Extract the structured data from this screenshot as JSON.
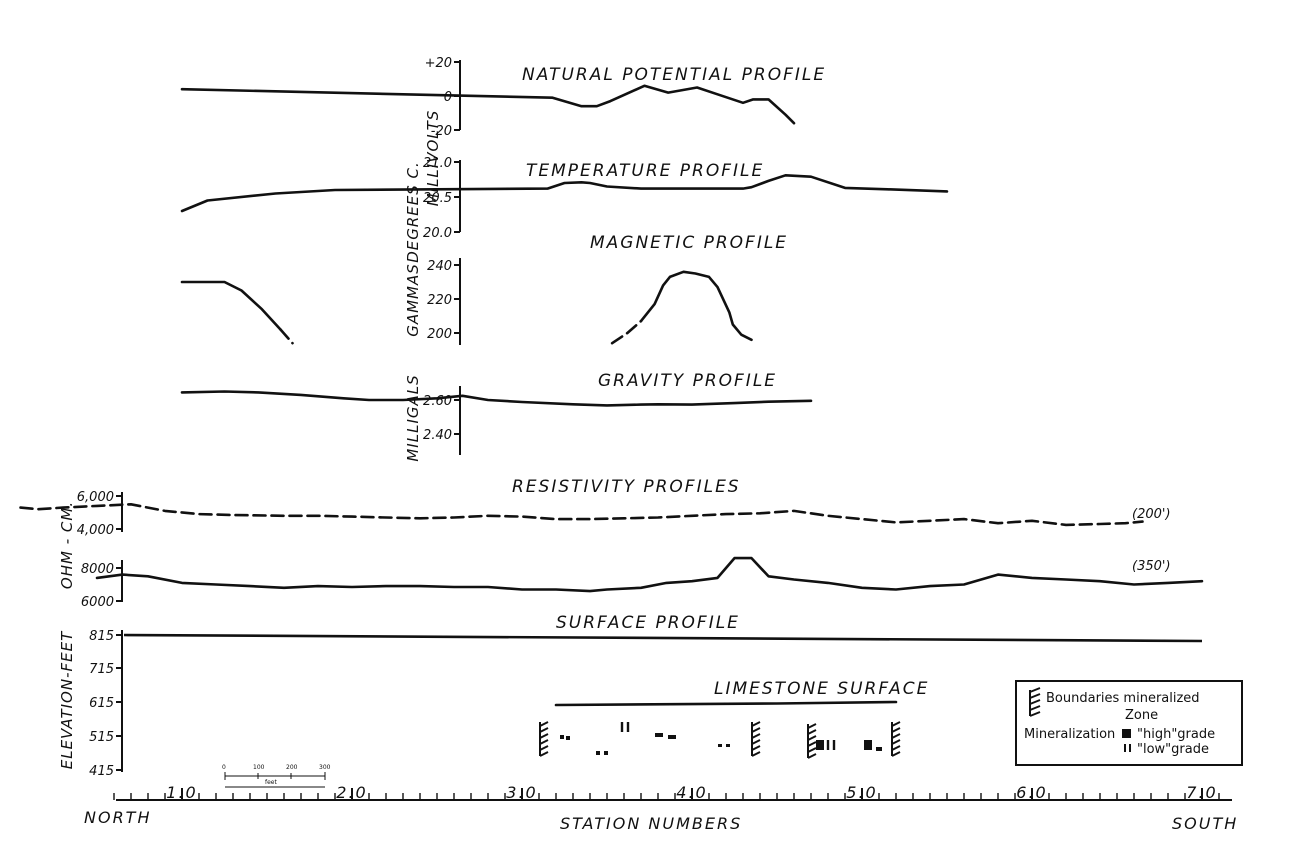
{
  "chart_data": [
    {
      "type": "line",
      "title": "NATURAL POTENTIAL PROFILE",
      "ylabel": "MILLIVOLTS",
      "ylim": [
        -20,
        20
      ],
      "yticks": [
        "+20",
        "0",
        "-20"
      ],
      "series": [
        {
          "x": [
            10,
            31.8,
            33.5,
            34.4,
            35.2,
            37.2,
            38.6,
            40.3,
            41.5,
            43,
            43.6,
            44.5,
            45.5,
            46
          ],
          "y": [
            4,
            -1,
            -6,
            -6,
            -3,
            6,
            2,
            5,
            1,
            -4,
            -2,
            -2,
            -11,
            -16
          ]
        }
      ]
    },
    {
      "type": "line",
      "title": "TEMPERATURE PROFILE",
      "ylabel": "DEGREES C.",
      "ylim": [
        20.0,
        21.0
      ],
      "yticks": [
        "21.0",
        "20.5",
        "20.0"
      ],
      "series": [
        {
          "x": [
            10,
            11.5,
            15.5,
            19,
            31.5,
            32.5,
            33.5,
            34,
            35,
            37,
            40,
            43,
            43.5,
            44.5,
            45.5,
            47,
            49,
            51.5,
            55
          ],
          "y": [
            20.3,
            20.45,
            20.55,
            20.6,
            20.62,
            20.7,
            20.71,
            20.7,
            20.65,
            20.62,
            20.62,
            20.62,
            20.64,
            20.73,
            20.81,
            20.79,
            20.63,
            20.61,
            20.58
          ]
        }
      ]
    },
    {
      "type": "line",
      "title": "MAGNETIC PROFILE",
      "ylabel": "GAMMAS",
      "ylim": [
        195,
        245
      ],
      "yticks": [
        "240",
        "220",
        "200"
      ],
      "series": [
        {
          "x": [
            10,
            11.8,
            11.9,
            12.5,
            13.5,
            14.7,
            15.8,
            16.5
          ],
          "y": [
            230,
            230,
            230,
            230,
            225,
            214,
            202,
            194
          ]
        },
        {
          "x": [
            35.3,
            36.2,
            37,
            37.8,
            38.3,
            38.7,
            39.5,
            40.2,
            41,
            41.5,
            42.2,
            42.4,
            42.9,
            43.5
          ],
          "y": [
            194,
            200,
            207,
            217,
            228,
            233,
            236,
            235,
            233,
            227,
            212,
            205,
            199,
            196
          ]
        }
      ]
    },
    {
      "type": "line",
      "title": "GRAVITY PROFILE",
      "ylabel": "MILLIGALS",
      "ylim": [
        2.3,
        2.7
      ],
      "yticks": [
        "2.60",
        "2.40"
      ],
      "series": [
        {
          "x": [
            10,
            12.5,
            14.5,
            17,
            19.5,
            21,
            23,
            25,
            26.5,
            28,
            30,
            33,
            35,
            37,
            38,
            40,
            42.5,
            44.5,
            47
          ],
          "y": [
            2.645,
            2.65,
            2.645,
            2.63,
            2.61,
            2.6,
            2.6,
            2.61,
            2.625,
            2.6,
            2.588,
            2.575,
            2.568,
            2.573,
            2.575,
            2.573,
            2.582,
            2.59,
            2.595
          ]
        }
      ]
    },
    {
      "type": "line",
      "title": "RESISTIVITY PROFILES",
      "ylabel": "OHM - CM.",
      "yticks_top": [
        "6,000",
        "4,000"
      ],
      "yticks_bottom": [
        "8000",
        "6000"
      ],
      "series_labels": [
        "(200')",
        "(350')"
      ],
      "series": [
        {
          "name": "(200')",
          "style": "dashed",
          "x": [
            0.5,
            1.5,
            3,
            5,
            7,
            8,
            9,
            11,
            13,
            16,
            18,
            20,
            22,
            24,
            26,
            28,
            30,
            32,
            34,
            36,
            38,
            40,
            42,
            44,
            46,
            48,
            50,
            52,
            54,
            56,
            58,
            60,
            62,
            64,
            65.5,
            66.5
          ],
          "y": [
            5300,
            5200,
            5300,
            5400,
            5500,
            5300,
            5100,
            4900,
            4850,
            4800,
            4800,
            4750,
            4700,
            4650,
            4700,
            4800,
            4750,
            4600,
            4600,
            4650,
            4700,
            4800,
            4900,
            4950,
            5100,
            4800,
            4600,
            4400,
            4500,
            4600,
            4350,
            4500,
            4250,
            4300,
            4350,
            4450
          ]
        },
        {
          "name": "(350')",
          "style": "solid",
          "x": [
            5,
            6.5,
            8,
            10,
            12,
            14,
            16,
            18,
            20,
            22,
            24,
            26,
            28,
            30,
            32,
            34,
            35,
            37,
            38.5,
            40,
            41.5,
            42.5,
            43.5,
            44.5,
            46,
            48,
            50,
            52,
            54,
            56,
            58,
            60,
            62,
            64,
            66,
            68,
            70
          ],
          "y": [
            7400,
            7600,
            7500,
            7100,
            7000,
            6900,
            6800,
            6900,
            6850,
            6900,
            6900,
            6850,
            6850,
            6700,
            6700,
            6600,
            6700,
            6800,
            7100,
            7200,
            7400,
            8600,
            8600,
            7500,
            7300,
            7100,
            6800,
            6700,
            6900,
            7000,
            7600,
            7400,
            7300,
            7200,
            7000,
            7100,
            7200
          ]
        }
      ]
    },
    {
      "type": "line",
      "title": "SURFACE PROFILE",
      "ylabel": "ELEVATION-FEET",
      "yticks": [
        "815",
        "715",
        "615",
        "515",
        "415"
      ],
      "series": [
        {
          "x": [
            0,
            72
          ],
          "y": [
            815,
            810
          ]
        },
        {
          "name": "LIMESTONE SURFACE",
          "x": [
            32,
            45,
            52
          ],
          "y": [
            610,
            615,
            620
          ]
        }
      ]
    }
  ],
  "annotations": {
    "limestone_label": "LIMESTONE SURFACE",
    "legend_boundary": "Boundaries mineralized",
    "legend_zone": "Zone",
    "legend_mineralization": "Mineralization",
    "legend_high": "\"high\"grade",
    "legend_low": "\"low\"grade",
    "scale_labels": [
      "0",
      "100",
      "200",
      "300"
    ],
    "scale_unit": "feet"
  },
  "x_axis": {
    "label": "STATION NUMBERS",
    "left_label": "NORTH",
    "right_label": "SOUTH",
    "tick_labels": [
      "1.0",
      "2.0",
      "3.0",
      "4.0",
      "5.0",
      "6.0",
      "7.0"
    ]
  }
}
